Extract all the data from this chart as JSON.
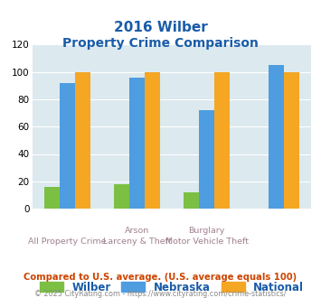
{
  "title_line1": "2016 Wilber",
  "title_line2": "Property Crime Comparison",
  "categories": [
    "All Property Crime",
    "Arson\nLarceny & Theft",
    "Burglary",
    "Motor Vehicle Theft"
  ],
  "cat_labels_top": [
    "",
    "Arson",
    "Burglary",
    ""
  ],
  "cat_labels_bot": [
    "All Property Crime",
    "Larceny & Theft",
    "Motor Vehicle Theft"
  ],
  "groups": [
    "Wilber",
    "Nebraska",
    "National"
  ],
  "values": {
    "Wilber": [
      16,
      18,
      12,
      0
    ],
    "Nebraska": [
      92,
      96,
      72,
      105
    ],
    "National": [
      100,
      100,
      100,
      100
    ]
  },
  "colors": {
    "Wilber": "#7bc043",
    "Nebraska": "#4d9de0",
    "National": "#f5a623"
  },
  "ylim": [
    0,
    120
  ],
  "yticks": [
    0,
    20,
    40,
    60,
    80,
    100,
    120
  ],
  "title_color": "#1a5ca8",
  "bg_color": "#dce9ef",
  "footer_text": "Compared to U.S. average. (U.S. average equals 100)",
  "copyright_text": "© 2025 CityRating.com - https://www.cityrating.com/crime-statistics/",
  "footer_color": "#cc4400",
  "copyright_color": "#888888"
}
